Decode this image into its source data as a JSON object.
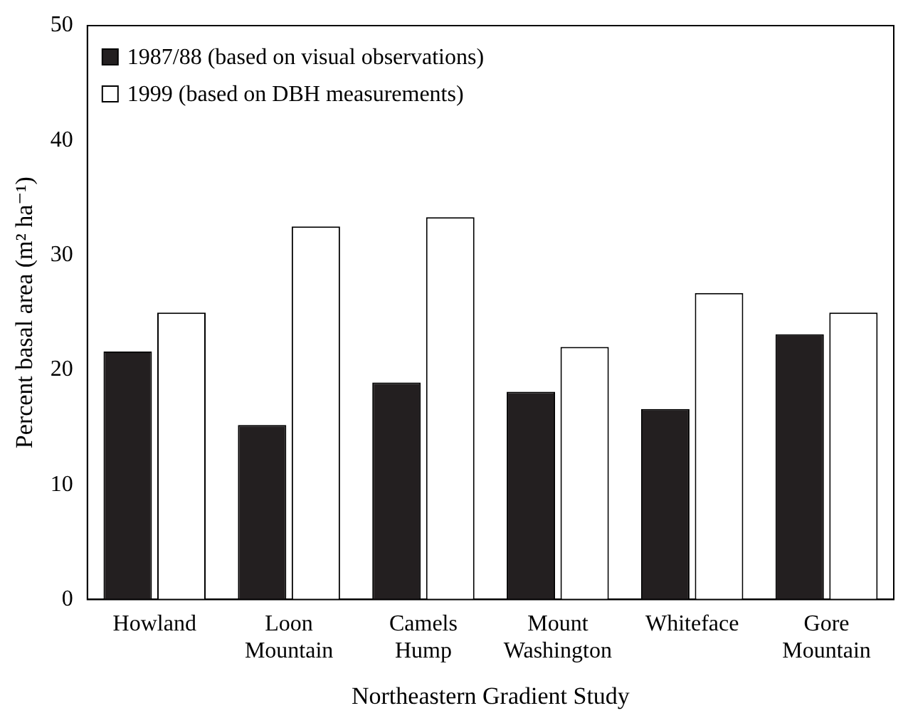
{
  "chart_data": {
    "type": "bar",
    "xlabel": "Northeastern Gradient Study",
    "ylabel": "Percent basal area (m² ha⁻¹)",
    "categories": [
      "Howland",
      "Loon Mountain",
      "Camels Hump",
      "Mount Washington",
      "Whiteface",
      "Gore Mountain"
    ],
    "series": [
      {
        "name": "1987/88 (based on visual observations)",
        "color": "#231f20",
        "values": [
          21.6,
          15.2,
          18.9,
          18.1,
          16.6,
          23.1
        ]
      },
      {
        "name": "1999 (based on DBH measurements)",
        "color": "#ffffff",
        "values": [
          25.0,
          32.5,
          33.3,
          22.0,
          26.7,
          25.0
        ]
      }
    ],
    "ylim": [
      0,
      50
    ],
    "yticks": [
      0,
      10,
      20,
      30,
      40,
      50
    ],
    "grid": false,
    "legend": "top left"
  }
}
